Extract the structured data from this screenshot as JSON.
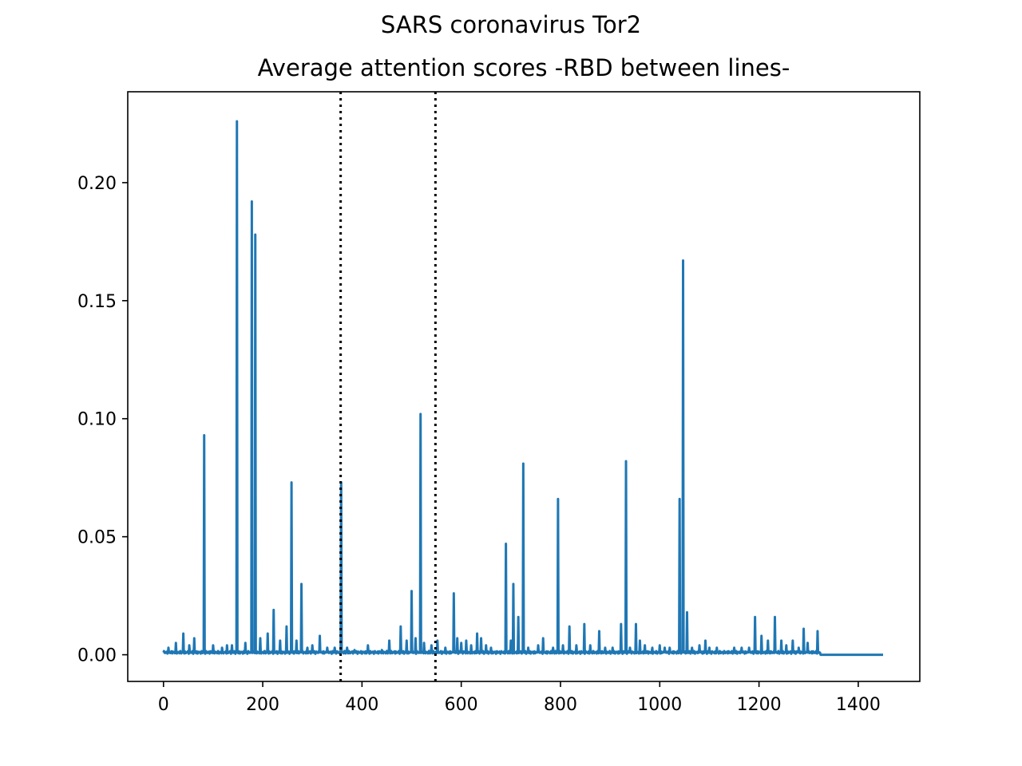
{
  "figure": {
    "suptitle": "SARS coronavirus Tor2"
  },
  "chart_data": {
    "type": "line",
    "title": "Average attention scores -RBD between lines-",
    "xlabel": "",
    "ylabel": "",
    "xlim": [
      -72,
      1524
    ],
    "ylim": [
      -0.0113,
      0.2385
    ],
    "xticks": [
      0,
      200,
      400,
      600,
      800,
      1000,
      1200,
      1400
    ],
    "xtick_labels": [
      "0",
      "200",
      "400",
      "600",
      "800",
      "1000",
      "1200",
      "1400"
    ],
    "yticks": [
      0.0,
      0.05,
      0.1,
      0.15,
      0.2
    ],
    "ytick_labels": [
      "0.00",
      "0.05",
      "0.10",
      "0.15",
      "0.20"
    ],
    "grid": false,
    "color": "#1f77b4",
    "baseline": 0.001,
    "series_length": 1451,
    "peaks": [
      [
        10,
        0.003
      ],
      [
        25,
        0.005
      ],
      [
        40,
        0.009
      ],
      [
        52,
        0.004
      ],
      [
        62,
        0.007
      ],
      [
        82,
        0.093
      ],
      [
        100,
        0.004
      ],
      [
        118,
        0.003
      ],
      [
        128,
        0.004
      ],
      [
        138,
        0.004
      ],
      [
        148,
        0.226
      ],
      [
        165,
        0.005
      ],
      [
        178,
        0.192
      ],
      [
        185,
        0.178
      ],
      [
        195,
        0.007
      ],
      [
        210,
        0.009
      ],
      [
        222,
        0.019
      ],
      [
        235,
        0.006
      ],
      [
        248,
        0.012
      ],
      [
        258,
        0.073
      ],
      [
        268,
        0.006
      ],
      [
        278,
        0.03
      ],
      [
        290,
        0.003
      ],
      [
        300,
        0.004
      ],
      [
        315,
        0.008
      ],
      [
        330,
        0.003
      ],
      [
        345,
        0.003
      ],
      [
        358,
        0.073
      ],
      [
        370,
        0.003
      ],
      [
        385,
        0.002
      ],
      [
        412,
        0.004
      ],
      [
        440,
        0.002
      ],
      [
        455,
        0.006
      ],
      [
        478,
        0.012
      ],
      [
        490,
        0.006
      ],
      [
        500,
        0.027
      ],
      [
        508,
        0.007
      ],
      [
        518,
        0.102
      ],
      [
        525,
        0.005
      ],
      [
        540,
        0.004
      ],
      [
        552,
        0.006
      ],
      [
        568,
        0.003
      ],
      [
        585,
        0.026
      ],
      [
        592,
        0.007
      ],
      [
        600,
        0.005
      ],
      [
        610,
        0.006
      ],
      [
        620,
        0.004
      ],
      [
        632,
        0.009
      ],
      [
        640,
        0.007
      ],
      [
        650,
        0.004
      ],
      [
        660,
        0.003
      ],
      [
        690,
        0.047
      ],
      [
        700,
        0.006
      ],
      [
        705,
        0.03
      ],
      [
        715,
        0.016
      ],
      [
        725,
        0.081
      ],
      [
        735,
        0.003
      ],
      [
        755,
        0.004
      ],
      [
        765,
        0.007
      ],
      [
        785,
        0.003
      ],
      [
        795,
        0.066
      ],
      [
        805,
        0.004
      ],
      [
        818,
        0.012
      ],
      [
        832,
        0.004
      ],
      [
        848,
        0.013
      ],
      [
        860,
        0.004
      ],
      [
        878,
        0.01
      ],
      [
        890,
        0.003
      ],
      [
        905,
        0.003
      ],
      [
        922,
        0.013
      ],
      [
        932,
        0.082
      ],
      [
        940,
        0.003
      ],
      [
        952,
        0.013
      ],
      [
        960,
        0.006
      ],
      [
        970,
        0.004
      ],
      [
        985,
        0.003
      ],
      [
        1000,
        0.004
      ],
      [
        1010,
        0.003
      ],
      [
        1020,
        0.003
      ],
      [
        1040,
        0.066
      ],
      [
        1047,
        0.167
      ],
      [
        1055,
        0.018
      ],
      [
        1065,
        0.003
      ],
      [
        1080,
        0.004
      ],
      [
        1092,
        0.006
      ],
      [
        1100,
        0.003
      ],
      [
        1115,
        0.003
      ],
      [
        1150,
        0.003
      ],
      [
        1165,
        0.003
      ],
      [
        1180,
        0.003
      ],
      [
        1192,
        0.016
      ],
      [
        1205,
        0.008
      ],
      [
        1218,
        0.006
      ],
      [
        1232,
        0.016
      ],
      [
        1245,
        0.006
      ],
      [
        1255,
        0.004
      ],
      [
        1268,
        0.006
      ],
      [
        1280,
        0.003
      ],
      [
        1290,
        0.011
      ],
      [
        1298,
        0.005
      ],
      [
        1318,
        0.01
      ]
    ],
    "flat_after": 1324,
    "vlines": [
      {
        "x": 357,
        "style": "dotted",
        "color": "#000000"
      },
      {
        "x": 548,
        "style": "dotted",
        "color": "#000000"
      }
    ]
  }
}
